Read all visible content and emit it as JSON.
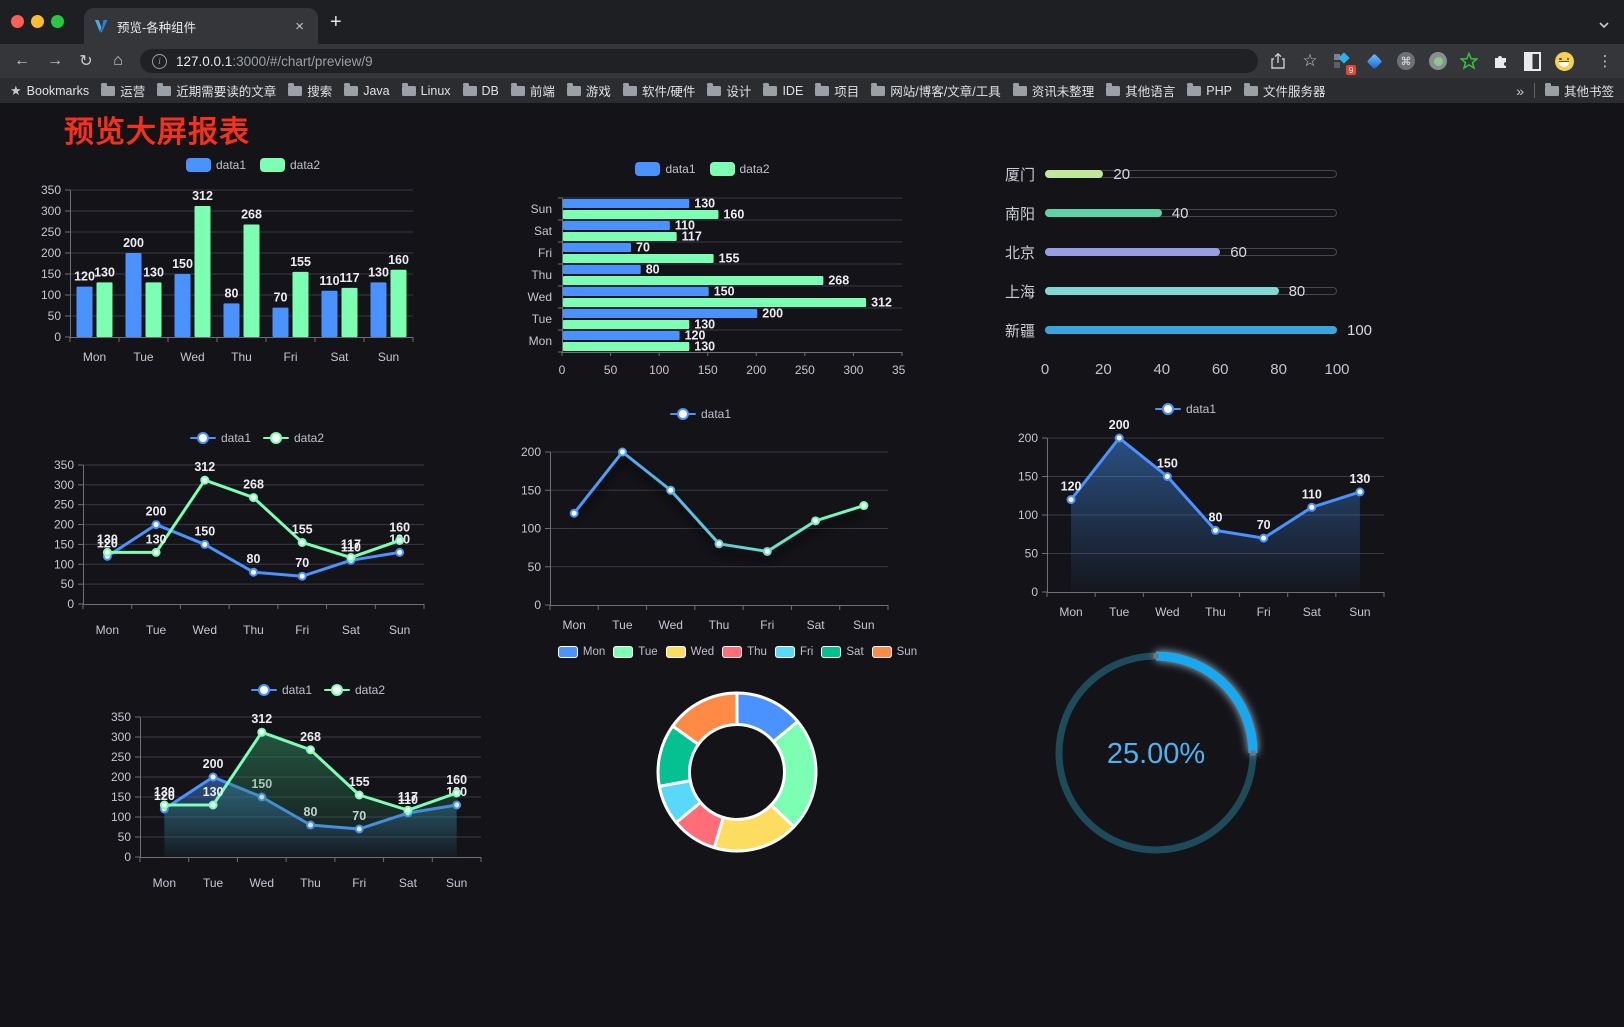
{
  "browser": {
    "window_controls": {
      "close": "#ff5f57",
      "minimize": "#febc2e",
      "zoom": "#28c840"
    },
    "tab_title": "预览-各种组件",
    "tab_close_glyph": "×",
    "new_tab_glyph": "+",
    "url_host": "127.0.0.1",
    "url_rest": ":3000/#/chart/preview/9",
    "url_full": "127.0.0.1:3000/#/chart/preview/9",
    "nav_icons": [
      {
        "name": "back-icon",
        "glyph": "←"
      },
      {
        "name": "forward-icon",
        "glyph": "→"
      },
      {
        "name": "reload-icon",
        "glyph": "↻"
      },
      {
        "name": "home-icon",
        "glyph": "⌂"
      }
    ],
    "info_glyph": "i",
    "action_icons": [
      {
        "name": "share-icon"
      },
      {
        "name": "bookmark-star-icon",
        "glyph": "☆"
      }
    ],
    "extensions": [
      {
        "name": "apps-grid-extension-icon",
        "badge": "9"
      },
      {
        "name": "kite-extension-icon"
      },
      {
        "name": "command-extension-icon",
        "glyph": "⌘"
      },
      {
        "name": "record-extension-icon"
      },
      {
        "name": "green-star-extension-icon"
      },
      {
        "name": "puzzle-extensions-icon"
      },
      {
        "name": "contrast-extension-icon"
      },
      {
        "name": "profile-emoji-icon"
      }
    ],
    "menu_glyph": "⋮",
    "bookmarks_label": "Bookmarks",
    "bookmarks": [
      "运营",
      "近期需要读的文章",
      "搜索",
      "Java",
      "Linux",
      "DB",
      "前端",
      "游戏",
      "软件/硬件",
      "设计",
      "IDE",
      "项目",
      "网站/博客/文章/工具",
      "资讯未整理",
      "其他语言",
      "PHP",
      "文件服务器"
    ],
    "overflow_chevron": "»",
    "other_bookmarks": "其他书签"
  },
  "page": {
    "heading": "预览大屏报表",
    "heading_color": "#f5301d",
    "background": "#131318"
  },
  "palette": {
    "blue": "#4992ff",
    "green": "#7cffb2",
    "yellow": "#fddd60",
    "red": "#ff6e76",
    "cyan": "#58d9f9",
    "teal": "#05c091",
    "orange": "#ff8a45"
  },
  "charts": {
    "days": [
      "Mon",
      "Tue",
      "Wed",
      "Thu",
      "Fri",
      "Sat",
      "Sun"
    ],
    "bar": {
      "type": "bar",
      "categories": [
        "Mon",
        "Tue",
        "Wed",
        "Thu",
        "Fri",
        "Sat",
        "Sun"
      ],
      "series": [
        {
          "name": "data1",
          "color": "#4992ff",
          "values": [
            120,
            200,
            150,
            80,
            70,
            110,
            130
          ]
        },
        {
          "name": "data2",
          "color": "#7cffb2",
          "values": [
            130,
            130,
            312,
            268,
            155,
            117,
            160
          ]
        }
      ],
      "ymax": 350,
      "ytick_step": 50
    },
    "hbar": {
      "type": "horizontal-bar",
      "categories": [
        "Mon",
        "Tue",
        "Wed",
        "Thu",
        "Fri",
        "Sat",
        "Sun"
      ],
      "series": [
        {
          "name": "data1",
          "color": "#4992ff",
          "values": [
            120,
            200,
            150,
            80,
            70,
            110,
            130
          ]
        },
        {
          "name": "data2",
          "color": "#7cffb2",
          "values": [
            130,
            130,
            312,
            268,
            155,
            117,
            160
          ]
        }
      ],
      "xmax": 350,
      "xtick_step": 50
    },
    "progress": {
      "type": "progress-bars",
      "rows": [
        {
          "label": "厦门",
          "value": 20,
          "color": "#c3e79b"
        },
        {
          "label": "南阳",
          "value": 40,
          "color": "#5ed3a8"
        },
        {
          "label": "北京",
          "value": 60,
          "color": "#989ee3"
        },
        {
          "label": "上海",
          "value": 80,
          "color": "#7fd8d4"
        },
        {
          "label": "新疆",
          "value": 100,
          "color": "#3aa4dc"
        }
      ],
      "axis_ticks": [
        0,
        20,
        40,
        60,
        80,
        100
      ],
      "max": 100
    },
    "line2": {
      "type": "line",
      "categories": [
        "Mon",
        "Tue",
        "Wed",
        "Thu",
        "Fri",
        "Sat",
        "Sun"
      ],
      "series": [
        {
          "name": "data1",
          "color": "#4992ff",
          "values": [
            120,
            200,
            150,
            80,
            70,
            110,
            130
          ]
        },
        {
          "name": "data2",
          "color": "#7cffb2",
          "values": [
            130,
            130,
            312,
            268,
            155,
            117,
            160
          ]
        }
      ],
      "ymax": 350,
      "show_labels": true
    },
    "gline": {
      "type": "gradient-line",
      "categories": [
        "Mon",
        "Tue",
        "Wed",
        "Thu",
        "Fri",
        "Sat",
        "Sun"
      ],
      "series": [
        {
          "name": "data1",
          "color": "#4992ff",
          "color2": "#7cffb2",
          "values": [
            120,
            200,
            150,
            80,
            70,
            110,
            130
          ]
        }
      ],
      "ymax": 200,
      "show_labels": false
    },
    "area1": {
      "type": "area",
      "categories": [
        "Mon",
        "Tue",
        "Wed",
        "Thu",
        "Fri",
        "Sat",
        "Sun"
      ],
      "series": [
        {
          "name": "data1",
          "color": "#4992ff",
          "values": [
            120,
            200,
            150,
            80,
            70,
            110,
            130
          ]
        }
      ],
      "ymax": 200,
      "show_labels": true
    },
    "area2": {
      "type": "area",
      "categories": [
        "Mon",
        "Tue",
        "Wed",
        "Thu",
        "Fri",
        "Sat",
        "Sun"
      ],
      "series": [
        {
          "name": "data1",
          "color": "#4992ff",
          "values": [
            120,
            200,
            150,
            80,
            70,
            110,
            130
          ]
        },
        {
          "name": "data2",
          "color": "#7cffb2",
          "values": [
            130,
            130,
            312,
            268,
            155,
            117,
            160
          ]
        }
      ],
      "ymax": 350,
      "show_labels": true
    },
    "donut": {
      "type": "pie",
      "labels": [
        "Mon",
        "Tue",
        "Wed",
        "Thu",
        "Fri",
        "Sat",
        "Sun"
      ],
      "values": [
        120,
        200,
        150,
        80,
        70,
        110,
        130
      ],
      "colors": [
        "#4992ff",
        "#7cffb2",
        "#fddd60",
        "#ff6e76",
        "#58d9f9",
        "#05c091",
        "#ff8a45"
      ]
    },
    "gauge": {
      "type": "gauge",
      "percent": 25,
      "value_text": "25.00%",
      "progress_color": "#18a8f1",
      "track_color": "#1d4b59",
      "text_color": "#4db3f3"
    }
  }
}
